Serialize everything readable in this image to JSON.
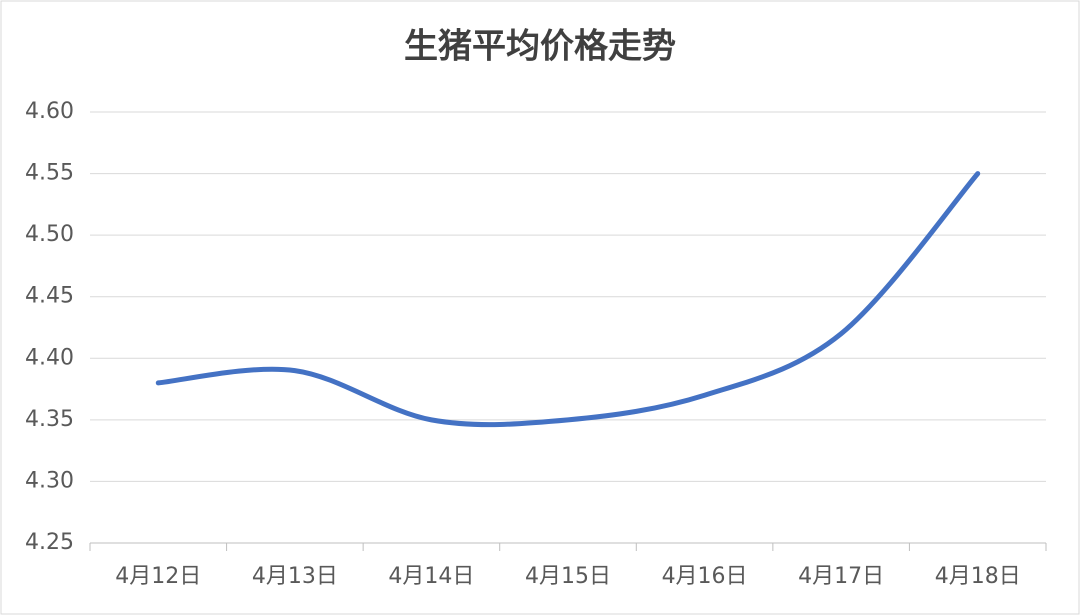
{
  "chart_data": {
    "type": "line",
    "title": "生猪平均价格走势",
    "categories": [
      "4月12日",
      "4月13日",
      "4月14日",
      "4月15日",
      "4月16日",
      "4月17日",
      "4月18日"
    ],
    "values": [
      4.38,
      4.39,
      4.35,
      4.35,
      4.37,
      4.42,
      4.55
    ],
    "color": "#4472c4",
    "smooth": true,
    "ylim": [
      4.25,
      4.6
    ],
    "yticks": [
      4.25,
      {
        "value": 4.3,
        "label": "4.30"
      },
      4.35,
      {
        "value": 4.4,
        "label": "4.40"
      },
      4.45,
      {
        "value": 4.5,
        "label": "4.50"
      },
      4.55,
      {
        "value": 4.6,
        "label": "4.60"
      }
    ],
    "grid": true
  }
}
